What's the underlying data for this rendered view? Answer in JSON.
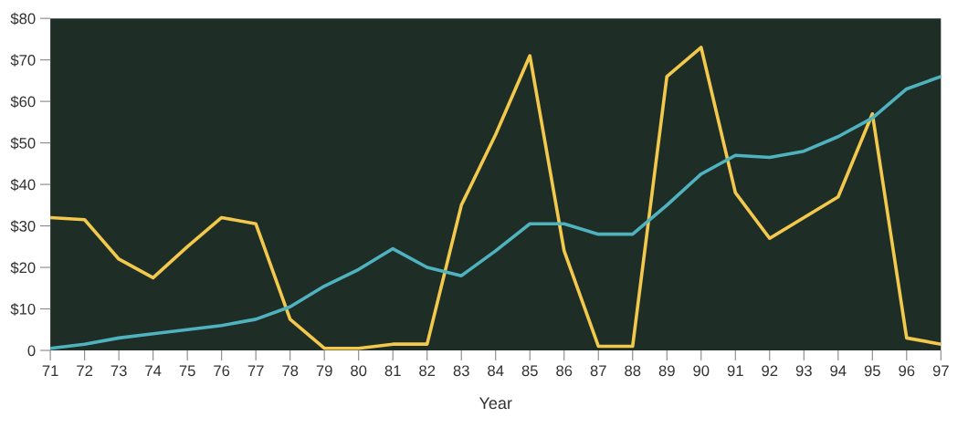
{
  "chart_data": {
    "type": "line",
    "xlabel": "Year",
    "categories": [
      "71",
      "72",
      "73",
      "74",
      "75",
      "76",
      "77",
      "78",
      "79",
      "80",
      "81",
      "82",
      "83",
      "84",
      "85",
      "86",
      "87",
      "88",
      "89",
      "90",
      "91",
      "92",
      "93",
      "94",
      "95",
      "96",
      "97"
    ],
    "series": [
      {
        "color": "#f2c94c",
        "values": [
          32,
          31.5,
          22,
          17.5,
          25,
          32,
          30.5,
          7.5,
          0.5,
          0.5,
          1.5,
          1.5,
          35,
          52,
          71,
          24,
          1,
          1,
          66,
          73,
          38,
          27,
          32,
          37,
          57,
          3,
          1.5
        ]
      },
      {
        "color": "#4fb3bf",
        "values": [
          0.5,
          1.5,
          3,
          4,
          5,
          6,
          7.5,
          10.5,
          15.5,
          19.5,
          24.5,
          20,
          18,
          24,
          30.5,
          30.5,
          28,
          28,
          35,
          42.5,
          47,
          46.5,
          48,
          51.5,
          56,
          63,
          66
        ]
      }
    ],
    "ylim": [
      0,
      80
    ],
    "yticks": [
      {
        "value": 0,
        "label": "0"
      },
      {
        "value": 10,
        "label": "$10"
      },
      {
        "value": 20,
        "label": "$20"
      },
      {
        "value": 30,
        "label": "$30"
      },
      {
        "value": 40,
        "label": "$40"
      },
      {
        "value": 50,
        "label": "$50"
      },
      {
        "value": 60,
        "label": "$60"
      },
      {
        "value": 70,
        "label": "$70"
      },
      {
        "value": 80,
        "label": "$80"
      }
    ],
    "grid": false
  }
}
